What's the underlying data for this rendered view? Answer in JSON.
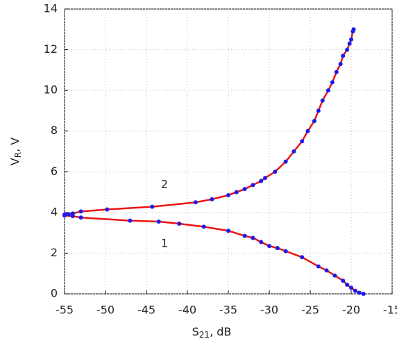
{
  "chart_data": {
    "type": "line",
    "xlabel": {
      "main": "S",
      "sub": "21",
      "unit": ",   dB"
    },
    "ylabel": {
      "main": "V",
      "sub": "R",
      "unit": ",   V"
    },
    "annotations": [
      "1",
      "2"
    ],
    "xlim": [
      -55,
      -15
    ],
    "xticks": [
      -55,
      -50,
      -45,
      -40,
      -35,
      -30,
      -25,
      -20,
      -15
    ],
    "ylim": [
      0,
      14
    ],
    "yticks": [
      0,
      2,
      4,
      6,
      8,
      10,
      12,
      14
    ],
    "grid": true,
    "series": [
      {
        "name": "1",
        "color": "#ee1111",
        "marker_color": "#1a1aee",
        "x": [
          -55,
          -54,
          -53,
          -47,
          -43.5,
          -41,
          -38,
          -35,
          -33,
          -32,
          -31,
          -30,
          -29,
          -28,
          -26,
          -24,
          -23,
          -22,
          -21,
          -20.5,
          -20,
          -19.5,
          -19,
          -18.5
        ],
        "values": [
          3.85,
          3.82,
          3.75,
          3.6,
          3.55,
          3.45,
          3.3,
          3.1,
          2.85,
          2.75,
          2.55,
          2.35,
          2.25,
          2.1,
          1.8,
          1.35,
          1.15,
          0.9,
          0.65,
          0.45,
          0.3,
          0.15,
          0.05,
          0
        ]
      },
      {
        "name": "2",
        "color": "#ee1111",
        "marker_color": "#1a1aee",
        "x": [
          -55,
          -54.5,
          -54,
          -53,
          -49.8,
          -44.3,
          -39,
          -37,
          -35,
          -34,
          -33,
          -32,
          -31,
          -30.5,
          -29.3,
          -28,
          -27,
          -26,
          -25.3,
          -24.5,
          -24,
          -23.5,
          -22.8,
          -22.3,
          -21.8,
          -21.3,
          -21,
          -20.5,
          -20.2,
          -20,
          -19.8,
          -19.7
        ],
        "values": [
          3.9,
          3.92,
          3.95,
          4.05,
          4.15,
          4.28,
          4.5,
          4.65,
          4.85,
          5.0,
          5.15,
          5.35,
          5.55,
          5.7,
          6.0,
          6.5,
          7.0,
          7.5,
          8.0,
          8.5,
          9.0,
          9.5,
          10.0,
          10.4,
          10.9,
          11.3,
          11.7,
          12.0,
          12.3,
          12.5,
          12.9,
          13.0
        ]
      }
    ]
  }
}
